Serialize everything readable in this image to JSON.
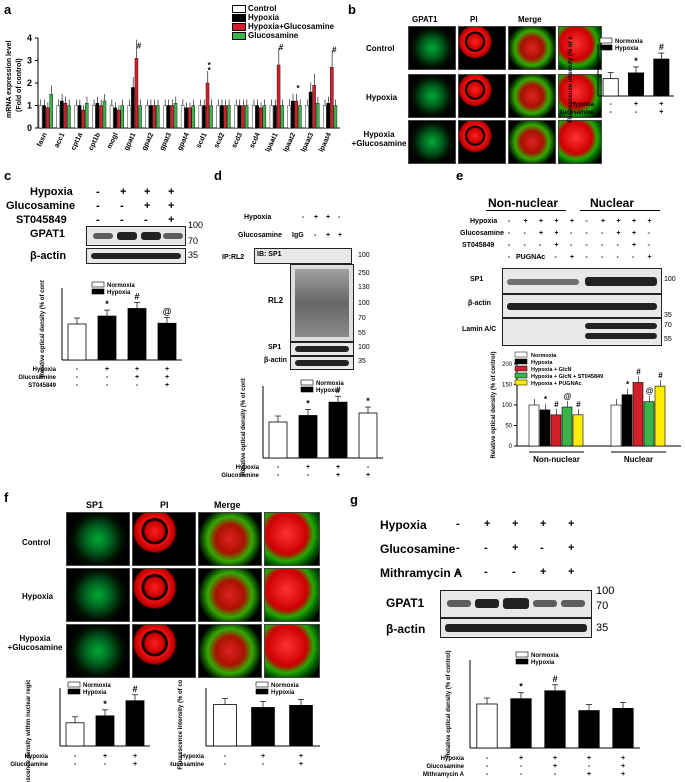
{
  "panels": {
    "a": "a",
    "b": "b",
    "c": "c",
    "d": "d",
    "e": "e",
    "f": "f",
    "g": "g"
  },
  "panel_a": {
    "legend": [
      "Control",
      "Hypoxia",
      "Hypoxia+Glucosamine",
      "Glucosamine"
    ],
    "colors": [
      "#ffffff",
      "#000000",
      "#d2202a",
      "#39b54a"
    ],
    "ylabel_line1": "mRNA expression level",
    "ylabel_line2": "(Fold of control)",
    "genes": [
      "fasn",
      "acc1",
      "cpt1a",
      "cpt1b",
      "mogl",
      "gpat1",
      "gpat2",
      "gpat3",
      "gpat4",
      "scd1",
      "scd2",
      "scd3",
      "scd4",
      "lpaat1",
      "lpaat2",
      "lpaat3",
      "lpaat4"
    ],
    "marks": [
      "#",
      "*",
      "*",
      "#",
      "*",
      "#"
    ]
  },
  "chart_data": [
    {
      "id": "a",
      "type": "bar",
      "categories": [
        "fasn",
        "acc1",
        "cpt1a",
        "cpt1b",
        "mogl",
        "gpat1",
        "gpat2",
        "gpat3",
        "gpat4",
        "scd1",
        "scd2",
        "scd3",
        "scd4",
        "lpaat1",
        "lpaat2",
        "lpaat3",
        "lpaat4"
      ],
      "series": [
        {
          "name": "Control",
          "values": [
            1,
            1,
            1,
            1,
            1,
            1,
            1,
            1,
            1,
            1,
            1,
            1,
            1,
            1,
            1,
            1,
            1
          ]
        },
        {
          "name": "Hypoxia",
          "values": [
            1.0,
            1.2,
            1.0,
            1.1,
            0.9,
            1.8,
            1.0,
            1.0,
            0.9,
            1.0,
            1.0,
            1.0,
            1.0,
            1.0,
            1.2,
            1.6,
            1.1
          ]
        },
        {
          "name": "Hypoxia+Glucosamine",
          "values": [
            0.9,
            1.1,
            0.8,
            1.0,
            0.8,
            3.1,
            1.0,
            1.0,
            0.9,
            2.0,
            1.0,
            1.0,
            0.9,
            2.8,
            1.2,
            1.9,
            2.7
          ]
        },
        {
          "name": "Glucosamine",
          "values": [
            1.5,
            1.0,
            1.1,
            1.2,
            1.0,
            1.0,
            1.0,
            1.1,
            1.0,
            1.0,
            1.0,
            1.0,
            1.0,
            1.0,
            1.0,
            1.1,
            1.0
          ]
        }
      ],
      "ylim": [
        0,
        4
      ],
      "yticks": [
        0,
        1,
        2,
        3,
        4
      ]
    },
    {
      "id": "b",
      "type": "bar",
      "ylabel": "Fluorescence intensity (% of control)",
      "legend": [
        "Normoxia",
        "Hypoxia"
      ],
      "series": [
        {
          "values": [
            100,
            133,
            213
          ]
        }
      ],
      "fills": [
        "#ffffff",
        "#000000",
        "#000000"
      ],
      "rows": {
        "Hypoxia": [
          "-",
          "+",
          "+"
        ],
        "Glucosamine": [
          "-",
          "-",
          "+"
        ]
      },
      "marks": [
        "",
        "*",
        "#"
      ],
      "ylim": [
        0,
        300
      ]
    },
    {
      "id": "c",
      "type": "bar",
      "ylabel": "Relative optical density (% of control)",
      "legend": [
        "Normoxia",
        "Hypoxia"
      ],
      "series": [
        {
          "values": [
            100,
            122,
            143,
            102
          ]
        }
      ],
      "fills": [
        "#ffffff",
        "#000000",
        "#000000",
        "#000000"
      ],
      "rows": {
        "Hypoxia": [
          "-",
          "+",
          "+",
          "+"
        ],
        "Glucosamine": [
          "-",
          "-",
          "+",
          "+"
        ],
        "ST045849": [
          "-",
          "-",
          "-",
          "+"
        ]
      },
      "marks": [
        "",
        "*",
        "#",
        "@"
      ],
      "ylim": [
        0,
        200
      ]
    },
    {
      "id": "d",
      "type": "bar",
      "ylabel": "Relative optical density (% of control)",
      "legend": [
        "Normoxia",
        "Hypoxia"
      ],
      "series": [
        {
          "values": [
            100,
            118,
            155,
            125
          ]
        }
      ],
      "fills": [
        "#ffffff",
        "#000000",
        "#000000",
        "#ffffff"
      ],
      "rows": {
        "Hypoxia": [
          "-",
          "+",
          "+",
          "-"
        ],
        "Glucosamine": [
          "-",
          "-",
          "+",
          "+"
        ]
      },
      "marks": [
        "",
        "*",
        "#",
        "*"
      ],
      "ylim": [
        0,
        200
      ]
    },
    {
      "id": "e",
      "type": "bar",
      "ylabel": "Relative optical density (% of control)",
      "legend": [
        "Normoxia",
        "Hypoxia",
        "Hypoxia + GlcN",
        "Hypoxia + GlcN + ST045849",
        "Hypoxia + PUGNAc"
      ],
      "groups": [
        "Non-nuclear",
        "Nuclear"
      ],
      "series": [
        {
          "name": "Normoxia",
          "values": [
            100,
            100
          ]
        },
        {
          "name": "Hypoxia",
          "values": [
            88,
            125
          ]
        },
        {
          "name": "Hypoxia + GlcN",
          "values": [
            76,
            155
          ]
        },
        {
          "name": "Hypoxia + GlcN + ST045849",
          "values": [
            95,
            108
          ]
        },
        {
          "name": "Hypoxia + PUGNAc",
          "values": [
            76,
            146
          ]
        }
      ],
      "marks": [
        [
          "",
          "*",
          "#",
          "@",
          "#"
        ],
        [
          "",
          "*",
          "#",
          "@",
          "#"
        ]
      ],
      "ylim": [
        0,
        200
      ]
    },
    {
      "id": "f1",
      "type": "bar",
      "ylabel": "Fluorescence density within nuclear region (% of control)",
      "legend": [
        "Normoxia",
        "Hypoxia"
      ],
      "series": [
        {
          "values": [
            100,
            130,
            195
          ]
        }
      ],
      "fills": [
        "#ffffff",
        "#000000",
        "#000000"
      ],
      "rows": {
        "Hypoxia": [
          "-",
          "+",
          "+"
        ],
        "Glucosamine": [
          "-",
          "-",
          "+"
        ]
      },
      "marks": [
        "",
        "*",
        "#"
      ],
      "ylim": [
        0,
        250
      ]
    },
    {
      "id": "f2",
      "type": "bar",
      "ylabel": "Fluorescence intensity (% of control)",
      "legend": [
        "Normoxia",
        "Hypoxia"
      ],
      "series": [
        {
          "values": [
            100,
            93,
            98
          ]
        }
      ],
      "fills": [
        "#ffffff",
        "#000000",
        "#000000"
      ],
      "rows": {
        "Hypoxia": [
          "-",
          "+",
          "+"
        ],
        "Glucosamine": [
          "-",
          "-",
          "+"
        ]
      },
      "ylim": [
        0,
        140
      ]
    },
    {
      "id": "g",
      "type": "bar",
      "ylabel": "Relative optical density (% of control)",
      "legend": [
        "Normoxia",
        "Hypoxia"
      ],
      "series": [
        {
          "values": [
            100,
            112,
            130,
            85,
            90
          ]
        }
      ],
      "fills": [
        "#ffffff",
        "#000000",
        "#000000",
        "#000000",
        "#000000"
      ],
      "rows": {
        "Hypoxia": [
          "-",
          "+",
          "+",
          "+",
          "+"
        ],
        "Glucosamine": [
          "-",
          "-",
          "+",
          "-",
          "+"
        ],
        "Mithramycin A": [
          "-",
          "-",
          "-",
          "+",
          "+"
        ]
      },
      "marks": [
        "",
        "*",
        "#",
        "",
        ""
      ],
      "ylim": [
        0,
        200
      ]
    }
  ],
  "panel_b": {
    "cols": [
      "GPAT1",
      "PI",
      "Merge"
    ],
    "rows": [
      "Control",
      "Hypoxia",
      "Hypoxia\n+Glucosamine"
    ]
  },
  "panel_c": {
    "rows": [
      {
        "label": "Hypoxia",
        "signs": [
          "-",
          "+",
          "+",
          "+"
        ]
      },
      {
        "label": "Glucosamine",
        "signs": [
          "-",
          "-",
          "+",
          "+"
        ]
      },
      {
        "label": "ST045849",
        "signs": [
          "-",
          "-",
          "-",
          "+"
        ]
      }
    ],
    "blots": [
      "GPAT1",
      "β-actin"
    ],
    "mw": [
      "100",
      "70",
      "35"
    ]
  },
  "panel_d": {
    "rows": [
      {
        "label": "Hypoxia",
        "signs": [
          "-",
          "+",
          "+",
          "-"
        ]
      },
      {
        "label": "Glucosamine",
        "signs": [
          "IgG",
          "-",
          "+",
          "+"
        ]
      }
    ],
    "ip": "IP:RL2",
    "ib": "IB: SP1",
    "blots": [
      "RL2",
      "SP1",
      "β-actin"
    ],
    "mw": [
      "100",
      "250",
      "130",
      "100",
      "70",
      "55",
      "100",
      "35"
    ]
  },
  "panel_e": {
    "groups": [
      "Non-nuclear",
      "Nuclear"
    ],
    "rows": [
      {
        "label": "Hypoxia"
      },
      {
        "label": "Glucosamine"
      },
      {
        "label": "ST045849"
      },
      {
        "label": "PUGNAc"
      }
    ],
    "blots": [
      "SP1",
      "β-actin",
      "Lamin A/C"
    ],
    "mw": [
      "100",
      "35",
      "70",
      "55"
    ]
  },
  "panel_f": {
    "cols": [
      "SP1",
      "PI",
      "Merge"
    ],
    "rows": [
      "Control",
      "Hypoxia",
      "Hypoxia\n+Glucosamine"
    ]
  },
  "panel_g": {
    "rows": [
      {
        "label": "Hypoxia",
        "signs": [
          "-",
          "+",
          "+",
          "+",
          "+"
        ]
      },
      {
        "label": "Glucosamine",
        "signs": [
          "-",
          "-",
          "+",
          "-",
          "+"
        ]
      },
      {
        "label": "Mithramycin A",
        "signs": [
          "-",
          "-",
          "-",
          "+",
          "+"
        ]
      }
    ],
    "blots": [
      "GPAT1",
      "β-actin"
    ],
    "mw": [
      "100",
      "70",
      "35"
    ]
  }
}
